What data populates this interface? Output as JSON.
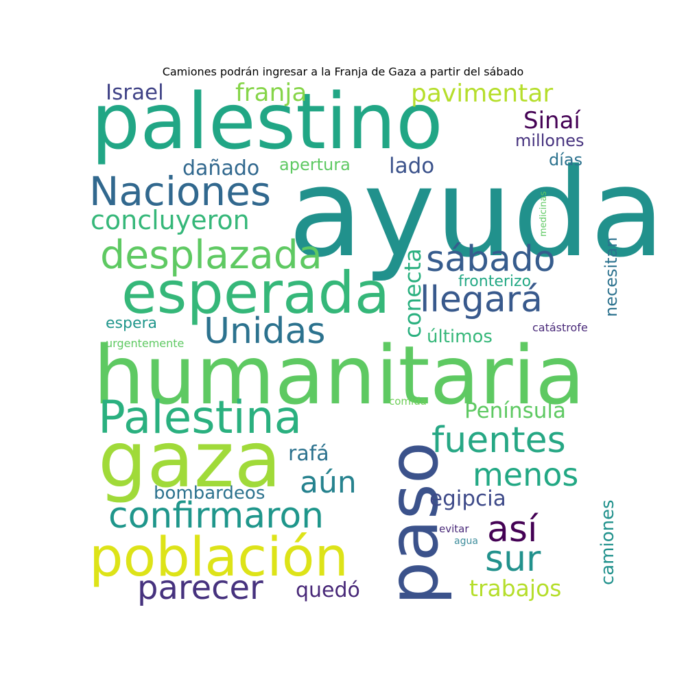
{
  "title": "Camiones podrán ingresar a la Franja de Gaza a partir del sábado",
  "words": [
    {
      "text": "ayuda",
      "color": "#21918c",
      "orientation": "horizontal"
    },
    {
      "text": "humanitaria",
      "color": "#5ec962",
      "orientation": "horizontal"
    },
    {
      "text": "palestino",
      "color": "#21a685",
      "orientation": "horizontal"
    },
    {
      "text": "gaza",
      "color": "#a0da39",
      "orientation": "horizontal"
    },
    {
      "text": "paso",
      "color": "#3b528b",
      "orientation": "vertical"
    },
    {
      "text": "esperada",
      "color": "#35b779",
      "orientation": "horizontal"
    },
    {
      "text": "población",
      "color": "#dde318",
      "orientation": "horizontal"
    },
    {
      "text": "Palestina",
      "color": "#2ab07f",
      "orientation": "horizontal"
    },
    {
      "text": "Naciones",
      "color": "#31688e",
      "orientation": "horizontal"
    },
    {
      "text": "desplazada",
      "color": "#5ec962",
      "orientation": "horizontal"
    },
    {
      "text": "confirmaron",
      "color": "#1f968b",
      "orientation": "horizontal"
    },
    {
      "text": "fuentes",
      "color": "#26a784",
      "orientation": "horizontal"
    },
    {
      "text": "sábado",
      "color": "#365c8d",
      "orientation": "horizontal"
    },
    {
      "text": "llegará",
      "color": "#38598c",
      "orientation": "horizontal"
    },
    {
      "text": "Unidas",
      "color": "#2c728e",
      "orientation": "horizontal"
    },
    {
      "text": "menos",
      "color": "#22a884",
      "orientation": "horizontal"
    },
    {
      "text": "parecer",
      "color": "#46327e",
      "orientation": "horizontal"
    },
    {
      "text": "así",
      "color": "#440154",
      "orientation": "horizontal"
    },
    {
      "text": "sur",
      "color": "#21918c",
      "orientation": "horizontal"
    },
    {
      "text": "concluyeron",
      "color": "#35b779",
      "orientation": "horizontal"
    },
    {
      "text": "aún",
      "color": "#26828e",
      "orientation": "horizontal"
    },
    {
      "text": "Israel",
      "color": "#414487",
      "orientation": "horizontal"
    },
    {
      "text": "franja",
      "color": "#86d549",
      "orientation": "horizontal"
    },
    {
      "text": "pavimentar",
      "color": "#b5de2b",
      "orientation": "horizontal"
    },
    {
      "text": "Sinaí",
      "color": "#440154",
      "orientation": "horizontal"
    },
    {
      "text": "trabajos",
      "color": "#b5de2b",
      "orientation": "horizontal"
    },
    {
      "text": "Península",
      "color": "#5ec962",
      "orientation": "horizontal"
    },
    {
      "text": "egipcia",
      "color": "#3e4a89",
      "orientation": "horizontal"
    },
    {
      "text": "conecta",
      "color": "#2ab07f",
      "orientation": "vertical"
    },
    {
      "text": "camiones",
      "color": "#21918c",
      "orientation": "vertical"
    },
    {
      "text": "dañado",
      "color": "#31688e",
      "orientation": "horizontal"
    },
    {
      "text": "lado",
      "color": "#3b528b",
      "orientation": "horizontal"
    },
    {
      "text": "rafá",
      "color": "#2c728e",
      "orientation": "horizontal"
    },
    {
      "text": "quedó",
      "color": "#482878",
      "orientation": "horizontal"
    },
    {
      "text": "bombardeos",
      "color": "#2c728e",
      "orientation": "horizontal"
    },
    {
      "text": "millones",
      "color": "#46327e",
      "orientation": "horizontal"
    },
    {
      "text": "días",
      "color": "#2c728e",
      "orientation": "horizontal"
    },
    {
      "text": "apertura",
      "color": "#5ec962",
      "orientation": "horizontal"
    },
    {
      "text": "necesitan",
      "color": "#2c728e",
      "orientation": "vertical"
    },
    {
      "text": "fronterizo",
      "color": "#22a884",
      "orientation": "horizontal"
    },
    {
      "text": "últimos",
      "color": "#35b779",
      "orientation": "horizontal"
    },
    {
      "text": "espera",
      "color": "#1f968b",
      "orientation": "horizontal"
    },
    {
      "text": "urgentemente",
      "color": "#5ec962",
      "orientation": "horizontal"
    },
    {
      "text": "catástrofe",
      "color": "#482878",
      "orientation": "horizontal"
    },
    {
      "text": "medicinas",
      "color": "#5ec962",
      "orientation": "vertical"
    },
    {
      "text": "comida",
      "color": "#6ece58",
      "orientation": "horizontal"
    },
    {
      "text": "evitar",
      "color": "#482878",
      "orientation": "horizontal"
    },
    {
      "text": "agua",
      "color": "#3e8d9c",
      "orientation": "horizontal"
    }
  ]
}
